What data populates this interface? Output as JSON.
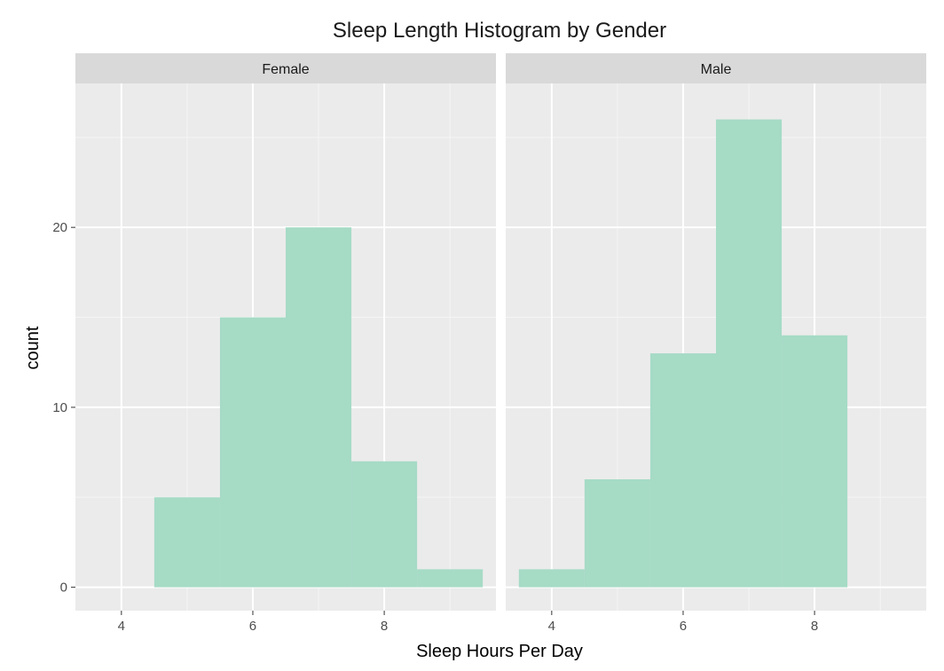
{
  "chart_data": {
    "type": "bar",
    "title": "Sleep Length Histogram by Gender",
    "xlabel": "Sleep Hours Per Day",
    "ylabel": "count",
    "xlim": [
      3.3,
      9.7
    ],
    "ylim": [
      -1.3,
      28.0
    ],
    "x_ticks": [
      4,
      6,
      8
    ],
    "y_ticks": [
      0,
      10,
      20
    ],
    "bin_width": 1,
    "grid": true,
    "bar_color": "#a3dac4",
    "panel_background": "#ebebeb",
    "strip_background": "#d9d9d9",
    "panels": [
      {
        "label": "Female",
        "bins": [
          {
            "start": 4.5,
            "end": 5.5,
            "count": 5
          },
          {
            "start": 5.5,
            "end": 6.5,
            "count": 15
          },
          {
            "start": 6.5,
            "end": 7.5,
            "count": 20
          },
          {
            "start": 7.5,
            "end": 8.5,
            "count": 7
          },
          {
            "start": 8.5,
            "end": 9.5,
            "count": 1
          }
        ]
      },
      {
        "label": "Male",
        "bins": [
          {
            "start": 3.5,
            "end": 4.5,
            "count": 1
          },
          {
            "start": 4.5,
            "end": 5.5,
            "count": 6
          },
          {
            "start": 5.5,
            "end": 6.5,
            "count": 13
          },
          {
            "start": 6.5,
            "end": 7.5,
            "count": 26
          },
          {
            "start": 7.5,
            "end": 8.5,
            "count": 14
          }
        ]
      }
    ]
  }
}
